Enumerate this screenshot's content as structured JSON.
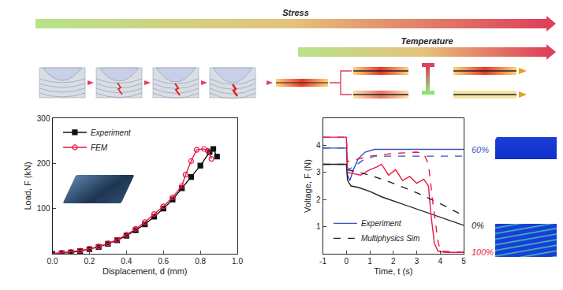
{
  "header": {
    "stress_label": "Stress",
    "temperature_label": "Temperature"
  },
  "chart_data": [
    {
      "type": "line",
      "xlabel": "Displacement, d (mm)",
      "ylabel": "Load, F (kN)",
      "xlim": [
        0,
        1.0
      ],
      "xticks": [
        {
          "value": 0,
          "label": "0.0"
        },
        {
          "value": 0.2,
          "label": "0.2"
        },
        {
          "value": 0.4,
          "label": "0.4"
        },
        {
          "value": 0.6,
          "label": "0.6"
        },
        {
          "value": 0.8,
          "label": "0.8"
        },
        {
          "value": 1.0,
          "label": "1.0"
        }
      ],
      "ylim": [
        0,
        300
      ],
      "yticks": [
        100,
        200,
        300
      ],
      "grid": false,
      "legend": "upper left",
      "series": [
        {
          "name": "Experiment",
          "color": "#111111",
          "marker": "square",
          "line_style": "solid",
          "x": [
            0,
            0.05,
            0.1,
            0.15,
            0.2,
            0.25,
            0.3,
            0.35,
            0.4,
            0.45,
            0.5,
            0.55,
            0.6,
            0.65,
            0.7,
            0.75,
            0.8,
            0.85,
            0.87,
            0.89
          ],
          "values": [
            0,
            1,
            3,
            6,
            10,
            15,
            22,
            30,
            40,
            52,
            65,
            82,
            100,
            120,
            145,
            170,
            195,
            225,
            232,
            215
          ]
        },
        {
          "name": "FEM",
          "color": "#e8194a",
          "marker": "circle-open",
          "line_style": "solid",
          "x": [
            0,
            0.05,
            0.1,
            0.15,
            0.2,
            0.25,
            0.3,
            0.35,
            0.4,
            0.45,
            0.5,
            0.55,
            0.6,
            0.65,
            0.7,
            0.72,
            0.75,
            0.78,
            0.82,
            0.84,
            0.86
          ],
          "values": [
            0,
            2,
            4,
            7,
            11,
            16,
            23,
            31,
            42,
            55,
            70,
            88,
            105,
            125,
            150,
            175,
            205,
            230,
            232,
            228,
            210
          ]
        }
      ]
    },
    {
      "type": "line",
      "xlabel": "Time, t (s)",
      "ylabel": "Voltage, F (N)",
      "xlim": [
        -1,
        5
      ],
      "xticks": [
        -1,
        0,
        1,
        2,
        3,
        4,
        5
      ],
      "ylim": [
        0,
        5
      ],
      "yticks": [
        1,
        2,
        3,
        4
      ],
      "grid": false,
      "legend": "lower left",
      "series": [
        {
          "name": "Experiment",
          "label": "60%",
          "color": "#3a4fc4",
          "line_style": "solid",
          "x": [
            -1,
            0,
            0.05,
            0.15,
            0.3,
            0.5,
            0.8,
            1.2,
            2,
            3,
            4,
            5
          ],
          "values": [
            3.9,
            3.9,
            2.9,
            2.7,
            3.1,
            3.5,
            3.75,
            3.85,
            3.85,
            3.85,
            3.85,
            3.85
          ]
        },
        {
          "name": "Experiment",
          "label": "0%",
          "color": "#222222",
          "line_style": "solid",
          "x": [
            -1,
            0,
            0.05,
            0.2,
            0.5,
            1,
            1.5,
            2,
            2.5,
            3,
            3.5,
            4,
            4.5,
            5
          ],
          "values": [
            3.3,
            3.3,
            2.7,
            2.5,
            2.45,
            2.3,
            2.1,
            1.95,
            1.8,
            1.65,
            1.5,
            1.35,
            1.2,
            1.05
          ]
        },
        {
          "name": "Experiment",
          "label": "100%",
          "color": "#e8194a",
          "line_style": "solid",
          "x": [
            -1,
            0,
            0.05,
            0.3,
            0.6,
            1,
            1.3,
            1.5,
            1.8,
            2.1,
            2.4,
            2.7,
            3,
            3.3,
            3.5,
            3.6,
            3.75,
            3.9,
            4.2,
            5
          ],
          "values": [
            4.3,
            4.3,
            3.0,
            2.95,
            2.9,
            3.1,
            3.2,
            3.3,
            2.9,
            3.1,
            2.7,
            2.85,
            2.6,
            2.75,
            2.5,
            1.5,
            0.4,
            0.1,
            0.05,
            0.05
          ]
        },
        {
          "name": "Multiphysics Sim",
          "color": "#222222",
          "line_style": "dash",
          "x": [
            -1,
            0,
            0.05,
            1,
            2,
            3,
            4,
            5
          ],
          "values": [
            3.3,
            3.3,
            3.1,
            2.9,
            2.6,
            2.25,
            1.85,
            1.4
          ]
        },
        {
          "name": "Multiphysics Sim",
          "color": "#3a4fc4",
          "line_style": "dash",
          "x": [
            -1,
            0,
            0.05,
            0.3,
            0.7,
            1.2,
            2,
            3,
            4,
            5
          ],
          "values": [
            3.9,
            3.9,
            3.1,
            3.2,
            3.45,
            3.6,
            3.6,
            3.6,
            3.6,
            3.6
          ]
        },
        {
          "name": "Multiphysics Sim",
          "color": "#e8194a",
          "line_style": "dash",
          "x": [
            -1,
            0,
            0.05,
            0.5,
            1,
            2,
            3,
            3.3,
            3.5,
            3.7,
            3.9,
            4,
            5
          ],
          "values": [
            4.3,
            4.3,
            3.4,
            3.5,
            3.6,
            3.7,
            3.75,
            3.7,
            3.3,
            1.8,
            0.5,
            0.1,
            0.05
          ]
        }
      ]
    }
  ]
}
